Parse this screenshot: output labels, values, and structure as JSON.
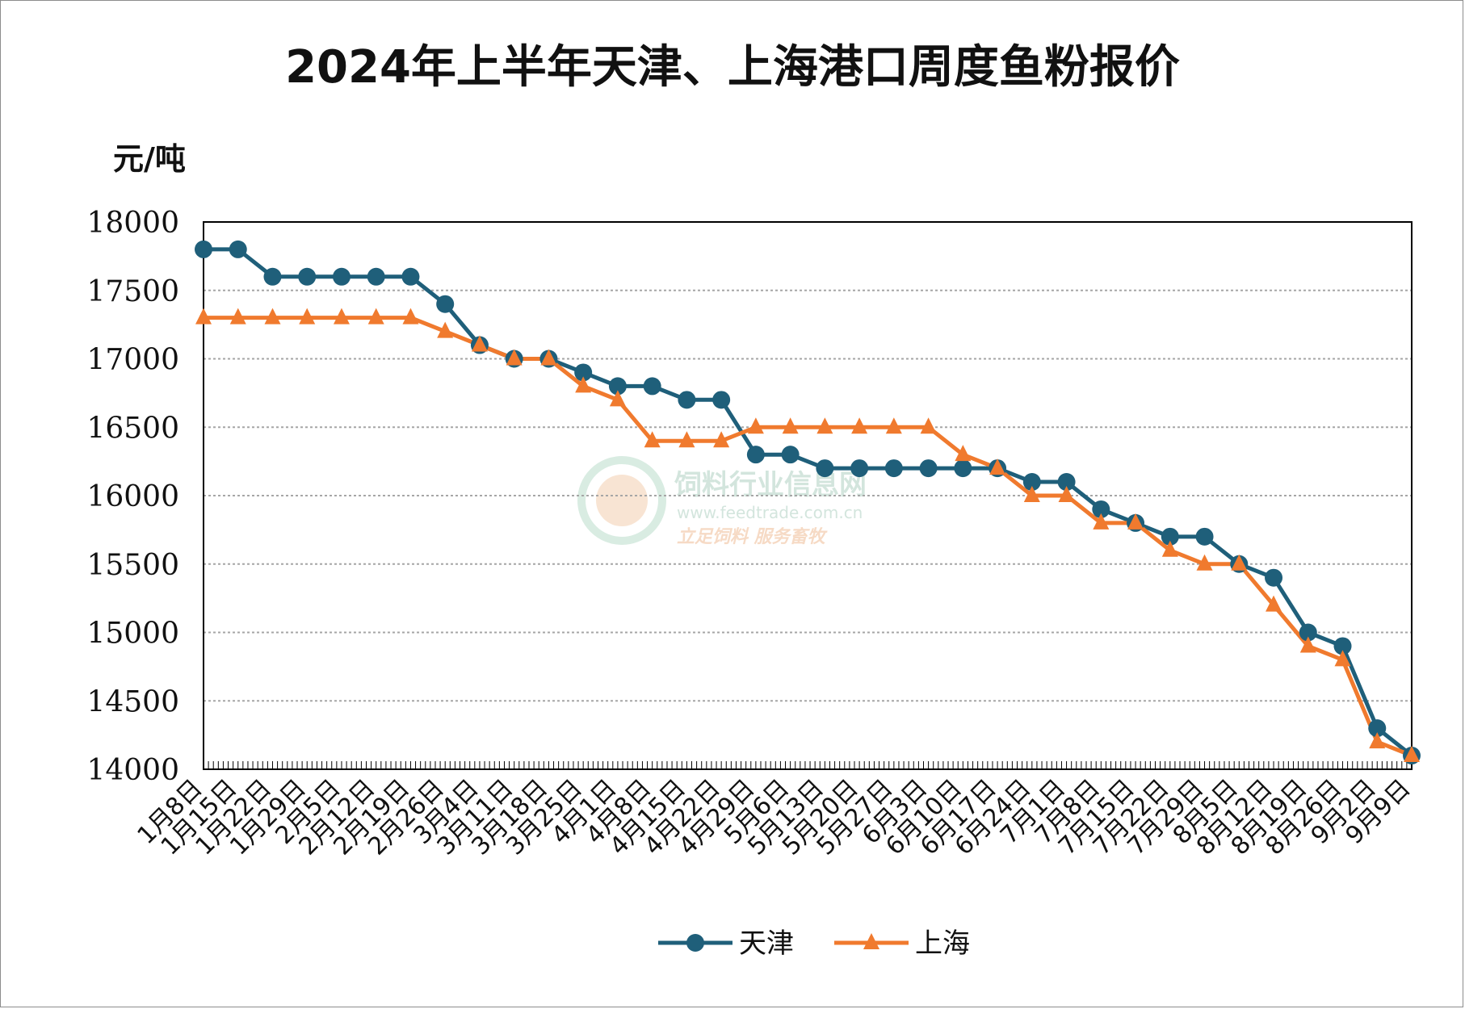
{
  "chart_data": {
    "type": "line",
    "title": "2024年上半年天津、上海港口周度鱼粉报价",
    "ylabel": "元/吨",
    "xlabel": "",
    "ylim": [
      14000,
      18000
    ],
    "y_ticks": [
      18000,
      17500,
      17000,
      16500,
      16000,
      15500,
      15000,
      14500,
      14000
    ],
    "grid": true,
    "legend_position": "bottom",
    "categories": [
      "1月8日",
      "1月15日",
      "1月22日",
      "1月29日",
      "2月5日",
      "2月12日",
      "2月19日",
      "2月26日",
      "3月4日",
      "3月11日",
      "3月18日",
      "3月25日",
      "4月1日",
      "4月8日",
      "4月15日",
      "4月22日",
      "4月29日",
      "5月6日",
      "5月13日",
      "5月20日",
      "5月27日",
      "6月3日",
      "6月10日",
      "6月17日",
      "6月24日",
      "7月1日",
      "7月8日",
      "7月15日",
      "7月22日",
      "7月29日",
      "8月5日",
      "8月12日",
      "8月19日",
      "8月26日",
      "9月2日",
      "9月9日"
    ],
    "series": [
      {
        "name": "天津",
        "color": "#1f5f7a",
        "marker": "circle",
        "values": [
          17800,
          17800,
          17600,
          17600,
          17600,
          17600,
          17600,
          17400,
          17100,
          17000,
          17000,
          16900,
          16800,
          16800,
          16700,
          16700,
          16300,
          16300,
          16200,
          16200,
          16200,
          16200,
          16200,
          16200,
          16100,
          16100,
          15900,
          15800,
          15700,
          15700,
          15500,
          15400,
          15000,
          14900,
          14300,
          14100
        ]
      },
      {
        "name": "上海",
        "color": "#f07a2e",
        "marker": "triangle",
        "values": [
          17300,
          17300,
          17300,
          17300,
          17300,
          17300,
          17300,
          17200,
          17100,
          17000,
          17000,
          16800,
          16700,
          16400,
          16400,
          16400,
          16500,
          16500,
          16500,
          16500,
          16500,
          16500,
          16300,
          16200,
          16000,
          16000,
          15800,
          15800,
          15600,
          15500,
          15500,
          15200,
          14900,
          14800,
          14200,
          14100
        ]
      }
    ]
  },
  "watermark": {
    "title": "饲料行业信息网",
    "url": "www.feedtrade.com.cn",
    "slogan": "立足饲料  服务畜牧",
    "color": "#cfe3da",
    "accent": "#f6d7bf"
  }
}
